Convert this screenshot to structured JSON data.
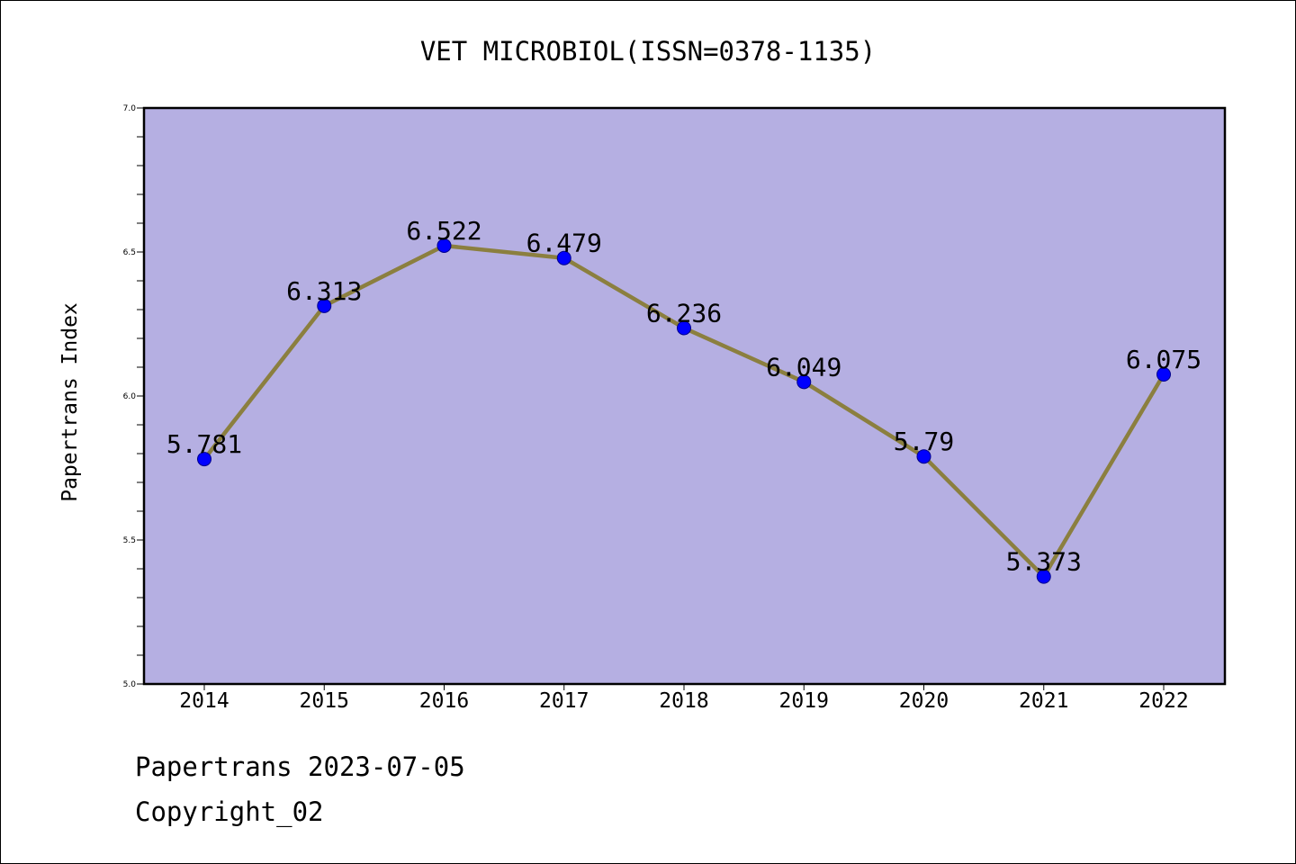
{
  "chart_data": {
    "type": "line",
    "title": "VET MICROBIOL(ISSN=0378-1135)",
    "ylabel": "Papertrans Index",
    "xlabel": "",
    "categories": [
      "2014",
      "2015",
      "2016",
      "2017",
      "2018",
      "2019",
      "2020",
      "2021",
      "2022"
    ],
    "series": [
      {
        "values": [
          5.781,
          6.313,
          6.522,
          6.479,
          6.236,
          6.049,
          5.79,
          5.373,
          6.075
        ]
      }
    ],
    "data_labels": [
      "5.781",
      "6.313",
      "6.522",
      "6.479",
      "6.236",
      "6.049",
      "5.79",
      "5.373",
      "6.075"
    ],
    "ylim": [
      5.0,
      7.0
    ],
    "yticks": [
      "5.0",
      "5.5",
      "6.0",
      "6.5",
      "7.0"
    ],
    "grid": false,
    "colors": {
      "plot_background": "#b5afe2",
      "line": "#8b7f3f",
      "marker": "#0000ff"
    }
  },
  "footer": {
    "line1": "Papertrans 2023-07-05",
    "line2": "Copyright_02"
  }
}
